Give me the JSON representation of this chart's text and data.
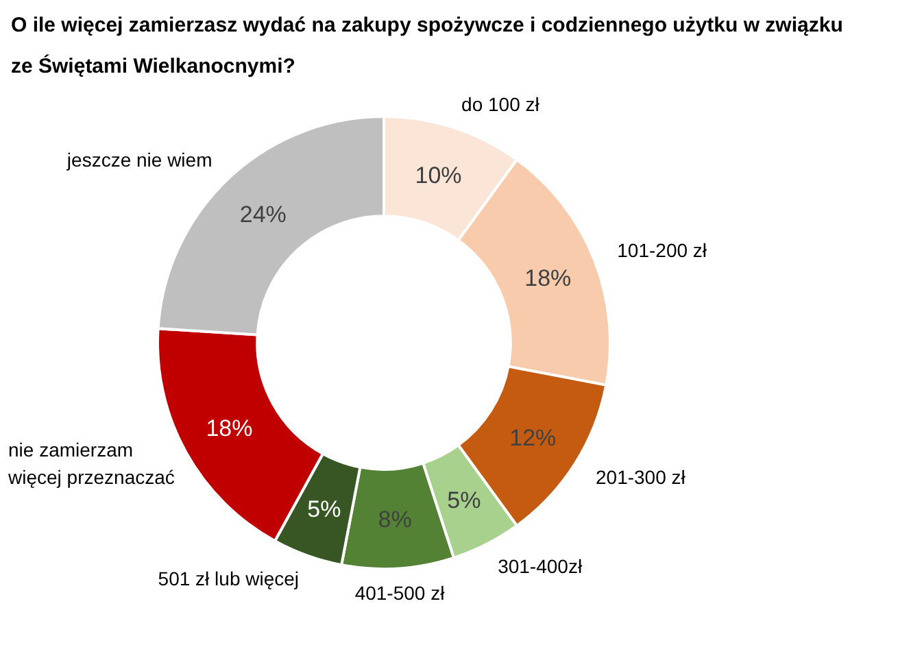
{
  "chart_data": {
    "type": "donut",
    "title": "O ile więcej zamierzasz wydać na zakupy spożywcze i codziennego użytku w związku ze Świętami Wielkanocnymi?",
    "categories": [
      "do 100 zł",
      "101-200 zł",
      "201-300 zł",
      "301-400zł",
      "401-500 zł",
      "501 zł lub więcej",
      "nie zamierzam\nwięcej przeznaczać",
      "jeszcze nie wiem"
    ],
    "values": [
      10,
      18,
      12,
      5,
      8,
      5,
      18,
      24
    ],
    "value_labels": [
      "10%",
      "18%",
      "12%",
      "5%",
      "8%",
      "5%",
      "18%",
      "24%"
    ],
    "colors": [
      "#fbe5d6",
      "#f8cbad",
      "#c55a11",
      "#a9d18e",
      "#548235",
      "#375623",
      "#c00000",
      "#bfbfbf"
    ]
  }
}
